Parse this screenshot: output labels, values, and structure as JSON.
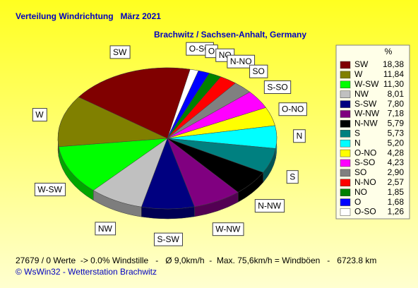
{
  "chart_data": {
    "type": "pie",
    "title": "Verteilung Windrichtung   März 2021",
    "subtitle": "Brachwitz / Sachsen-Anhalt, Germany",
    "legend_title": "%",
    "categories": [
      "SW",
      "W",
      "W-SW",
      "NW",
      "S-SW",
      "W-NW",
      "N-NW",
      "S",
      "N",
      "O-NO",
      "S-SO",
      "SO",
      "N-NO",
      "NO",
      "O",
      "O-SO"
    ],
    "values": [
      18.38,
      11.84,
      11.3,
      8.01,
      7.8,
      7.18,
      5.79,
      5.73,
      5.2,
      4.28,
      4.23,
      2.9,
      2.57,
      1.85,
      1.68,
      1.26
    ],
    "value_labels": [
      "18,38",
      "11,84",
      "11,30",
      "8,01",
      "7,80",
      "7,18",
      "5,79",
      "5,73",
      "5,20",
      "4,28",
      "4,23",
      "2,90",
      "2,57",
      "1,85",
      "1,68",
      "1,26"
    ],
    "colors": [
      "#800000",
      "#808000",
      "#00ff00",
      "#c0c0c0",
      "#000080",
      "#800080",
      "#000000",
      "#008080",
      "#00ffff",
      "#ffff00",
      "#ff00ff",
      "#808080",
      "#ff0000",
      "#008000",
      "#0000ff",
      "#ffffff"
    ],
    "legend": "right",
    "footer": "27679 / 0 Werte  -> 0.0% Windstille   -   Ø 9,0km/h  -  Max. 75,6km/h = Windböen   -   6723.8 km",
    "credit": "© WsWin32  -  Wetterstation Brachwitz"
  }
}
